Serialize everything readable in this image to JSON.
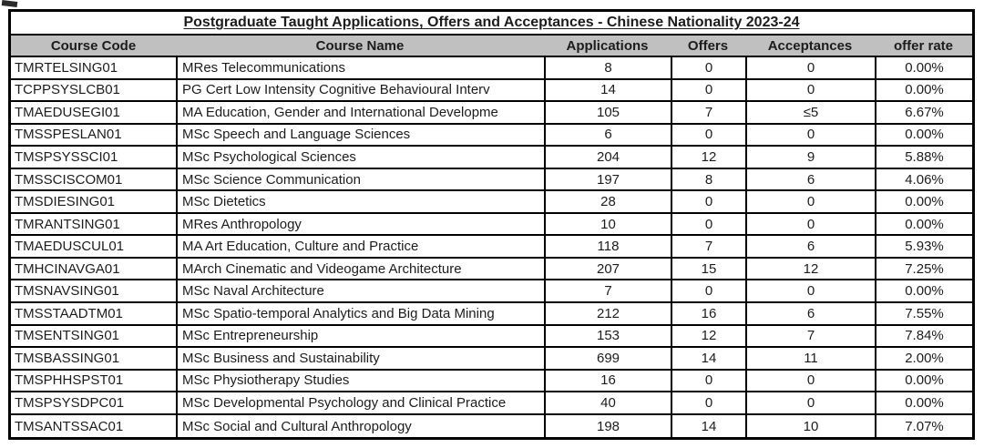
{
  "table": {
    "title": "Postgraduate Taught Applications, Offers and Acceptances - Chinese Nationality 2023-24",
    "columns": [
      {
        "key": "code",
        "label": "Course Code",
        "class": "col-code"
      },
      {
        "key": "name",
        "label": "Course Name",
        "class": "col-name"
      },
      {
        "key": "applications",
        "label": "Applications",
        "class": "col-apps"
      },
      {
        "key": "offers",
        "label": "Offers",
        "class": "col-offers"
      },
      {
        "key": "acceptances",
        "label": "Acceptances",
        "class": "col-acc"
      },
      {
        "key": "offer_rate",
        "label": "offer rate",
        "class": "col-rate"
      }
    ],
    "rows": [
      {
        "code": "TMRTELSING01",
        "name": "MRes Telecommunications",
        "applications": "8",
        "offers": "0",
        "acceptances": "0",
        "offer_rate": "0.00%"
      },
      {
        "code": "TCPPSYSLCB01",
        "name": "PG Cert Low Intensity Cognitive Behavioural Interv",
        "applications": "14",
        "offers": "0",
        "acceptances": "0",
        "offer_rate": "0.00%"
      },
      {
        "code": "TMAEDUSEGI01",
        "name": "MA Education, Gender and International Developme",
        "applications": "105",
        "offers": "7",
        "acceptances": "≤5",
        "offer_rate": "6.67%"
      },
      {
        "code": "TMSSPESLAN01",
        "name": "MSc Speech and Language Sciences",
        "applications": "6",
        "offers": "0",
        "acceptances": "0",
        "offer_rate": "0.00%"
      },
      {
        "code": "TMSPSYSSCI01",
        "name": "MSc Psychological Sciences",
        "applications": "204",
        "offers": "12",
        "acceptances": "9",
        "offer_rate": "5.88%"
      },
      {
        "code": "TMSSCISCOM01",
        "name": "MSc Science Communication",
        "applications": "197",
        "offers": "8",
        "acceptances": "6",
        "offer_rate": "4.06%"
      },
      {
        "code": "TMSDIESING01",
        "name": "MSc Dietetics",
        "applications": "28",
        "offers": "0",
        "acceptances": "0",
        "offer_rate": "0.00%"
      },
      {
        "code": "TMRANTSING01",
        "name": "MRes Anthropology",
        "applications": "10",
        "offers": "0",
        "acceptances": "0",
        "offer_rate": "0.00%"
      },
      {
        "code": "TMAEDUSCUL01",
        "name": "MA Art Education, Culture and Practice",
        "applications": "118",
        "offers": "7",
        "acceptances": "6",
        "offer_rate": "5.93%"
      },
      {
        "code": "TMHCINAVGA01",
        "name": "MArch Cinematic and Videogame Architecture",
        "applications": "207",
        "offers": "15",
        "acceptances": "12",
        "offer_rate": "7.25%"
      },
      {
        "code": "TMSNAVSING01",
        "name": "MSc Naval Architecture",
        "applications": "7",
        "offers": "0",
        "acceptances": "0",
        "offer_rate": "0.00%"
      },
      {
        "code": "TMSSTAADTM01",
        "name": "MSc Spatio-temporal Analytics and Big Data Mining",
        "applications": "212",
        "offers": "16",
        "acceptances": "6",
        "offer_rate": "7.55%"
      },
      {
        "code": "TMSENTSING01",
        "name": "MSc Entrepreneurship",
        "applications": "153",
        "offers": "12",
        "acceptances": "7",
        "offer_rate": "7.84%"
      },
      {
        "code": "TMSBASSING01",
        "name": "MSc Business and Sustainability",
        "applications": "699",
        "offers": "14",
        "acceptances": "11",
        "offer_rate": "2.00%"
      },
      {
        "code": "TMSPHHSPST01",
        "name": "MSc Physiotherapy Studies",
        "applications": "16",
        "offers": "0",
        "acceptances": "0",
        "offer_rate": "0.00%"
      },
      {
        "code": "TMSPSYSDPC01",
        "name": "MSc Developmental Psychology and Clinical Practice",
        "applications": "40",
        "offers": "0",
        "acceptances": "0",
        "offer_rate": "0.00%"
      },
      {
        "code": "TMSANTSSAC01",
        "name": "MSc Social and Cultural Anthropology",
        "applications": "198",
        "offers": "14",
        "acceptances": "10",
        "offer_rate": "7.07%"
      }
    ],
    "colors": {
      "header_background": "#c0c0c0",
      "border": "#000000",
      "text": "#1c1c1c"
    }
  },
  "chart_data": {
    "type": "table",
    "title": "Postgraduate Taught Applications, Offers and Acceptances - Chinese Nationality 2023-24",
    "columns": [
      "Course Code",
      "Course Name",
      "Applications",
      "Offers",
      "Acceptances",
      "offer rate"
    ],
    "rows": [
      [
        "TMRTELSING01",
        "MRes Telecommunications",
        8,
        0,
        0,
        "0.00%"
      ],
      [
        "TCPPSYSLCB01",
        "PG Cert Low Intensity Cognitive Behavioural Interv",
        14,
        0,
        0,
        "0.00%"
      ],
      [
        "TMAEDUSEGI01",
        "MA Education, Gender and International Developme",
        105,
        7,
        "≤5",
        "6.67%"
      ],
      [
        "TMSSPESLAN01",
        "MSc Speech and Language Sciences",
        6,
        0,
        0,
        "0.00%"
      ],
      [
        "TMSPSYSSCI01",
        "MSc Psychological Sciences",
        204,
        12,
        9,
        "5.88%"
      ],
      [
        "TMSSCISCOM01",
        "MSc Science Communication",
        197,
        8,
        6,
        "4.06%"
      ],
      [
        "TMSDIESING01",
        "MSc Dietetics",
        28,
        0,
        0,
        "0.00%"
      ],
      [
        "TMRANTSING01",
        "MRes Anthropology",
        10,
        0,
        0,
        "0.00%"
      ],
      [
        "TMAEDUSCUL01",
        "MA Art Education, Culture and Practice",
        118,
        7,
        6,
        "5.93%"
      ],
      [
        "TMHCINAVGA01",
        "MArch Cinematic and Videogame Architecture",
        207,
        15,
        12,
        "7.25%"
      ],
      [
        "TMSNAVSING01",
        "MSc Naval Architecture",
        7,
        0,
        0,
        "0.00%"
      ],
      [
        "TMSSTAADTM01",
        "MSc Spatio-temporal Analytics and Big Data Mining",
        212,
        16,
        6,
        "7.55%"
      ],
      [
        "TMSENTSING01",
        "MSc Entrepreneurship",
        153,
        12,
        7,
        "7.84%"
      ],
      [
        "TMSBASSING01",
        "MSc Business and Sustainability",
        699,
        14,
        11,
        "2.00%"
      ],
      [
        "TMSPHHSPST01",
        "MSc Physiotherapy Studies",
        16,
        0,
        0,
        "0.00%"
      ],
      [
        "TMSPSYSDPC01",
        "MSc Developmental Psychology and Clinical Practice",
        40,
        0,
        0,
        "0.00%"
      ],
      [
        "TMSANTSSAC01",
        "MSc Social and Cultural Anthropology",
        198,
        14,
        10,
        "7.07%"
      ]
    ]
  }
}
